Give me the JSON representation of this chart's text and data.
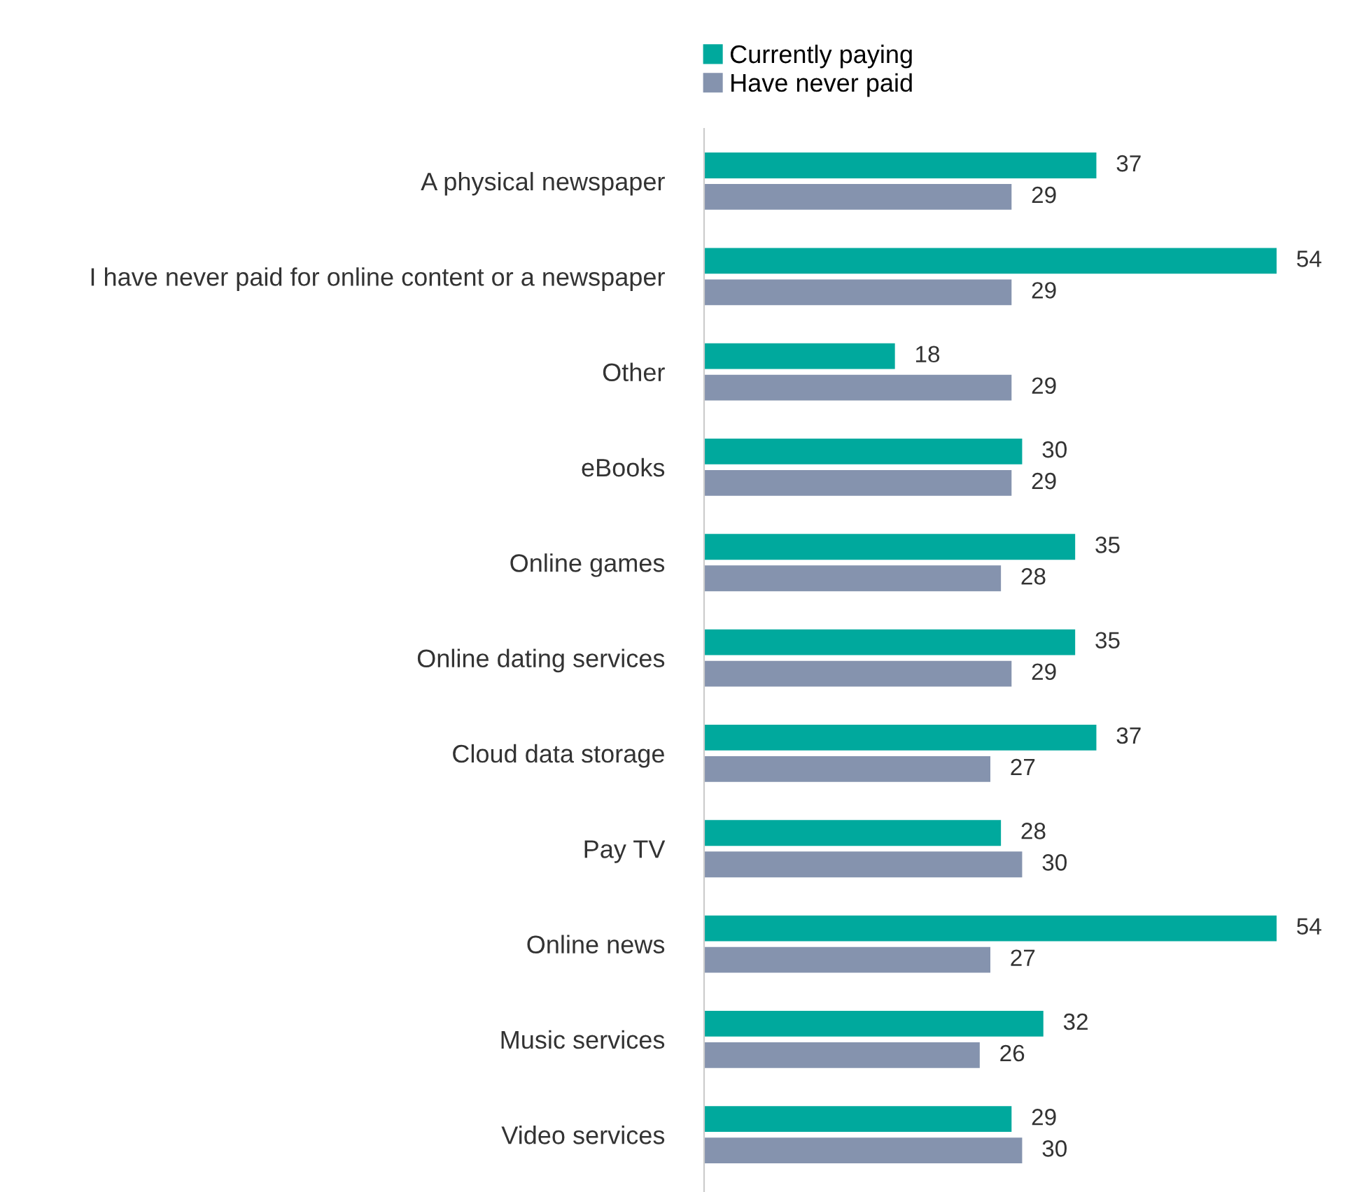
{
  "chart_data": {
    "type": "bar",
    "orientation": "horizontal",
    "categories": [
      "A physical newspaper",
      "I have never paid for online content or a newspaper",
      "Other",
      "eBooks",
      "Online games",
      "Online dating services",
      "Cloud data storage",
      "Pay TV",
      "Online news",
      "Music services",
      "Video services"
    ],
    "series": [
      {
        "name": "Currently paying",
        "color": "#00a99d",
        "values": [
          37,
          54,
          18,
          30,
          35,
          35,
          37,
          28,
          54,
          32,
          29
        ]
      },
      {
        "name": "Have never paid",
        "color": "#8593ae",
        "values": [
          29,
          29,
          29,
          29,
          28,
          29,
          27,
          30,
          27,
          26,
          30
        ]
      }
    ],
    "data_labels": true,
    "legend": "top",
    "grid": false,
    "tick_labels": "y"
  }
}
